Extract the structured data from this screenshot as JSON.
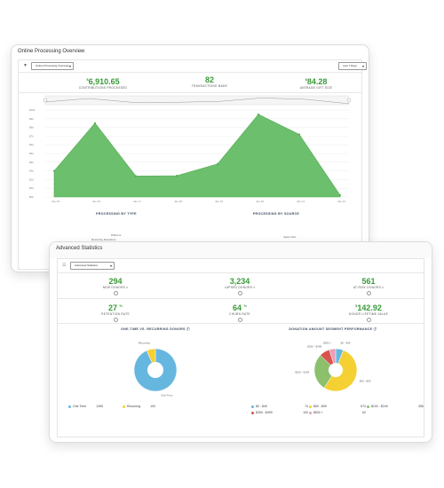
{
  "online": {
    "title": "Online Processing Overview",
    "filter_select": "Online Processing Overview",
    "range_select": "Last 7 Days",
    "stats": [
      {
        "value": "6,910.65",
        "prefix": "$",
        "label": "Contributions Processed"
      },
      {
        "value": "82",
        "prefix": "",
        "label": "Transactions Made"
      },
      {
        "value": "84.28",
        "prefix": "$",
        "label": "Average Gift Size"
      }
    ],
    "chart_data": {
      "type": "area",
      "x": [
        "Jan 15",
        "Jan 16",
        "Jan 17",
        "Jan 18",
        "Jan 19",
        "Jan 20",
        "Jan 21",
        "Jan 22"
      ],
      "values": [
        300,
        850,
        240,
        245,
        380,
        950,
        720,
        20
      ],
      "ylim": [
        0,
        1000
      ],
      "y_ticks": [
        "$0k",
        "$1k",
        "$2k",
        "$3k",
        "$4k",
        "$5k",
        "$6k",
        "$7k",
        "$8k",
        "$9k",
        "$10k"
      ],
      "color": "#6cbf6c",
      "grid": true
    },
    "by_type_title": "Processing by Type",
    "by_source_title": "Processing by Source",
    "by_type_labels": [
      "Different",
      "Recurring Donations"
    ],
    "by_source_labels": [
      "Apply Now"
    ]
  },
  "advanced": {
    "title": "Advanced Statistics",
    "filter_select": "Advanced Statistics",
    "stats_row1": [
      {
        "value": "294",
        "prefix": "",
        "suffix": "",
        "label": "New Donors"
      },
      {
        "value": "3,234",
        "prefix": "",
        "suffix": "",
        "label": "Lapsed Donors"
      },
      {
        "value": "561",
        "prefix": "",
        "suffix": "",
        "label": "At-Risk Donors"
      }
    ],
    "stats_row2": [
      {
        "value": "27",
        "prefix": "",
        "suffix": "%",
        "label": "Retention Rate"
      },
      {
        "value": "64",
        "prefix": "",
        "suffix": "%",
        "label": "Churn Rate"
      },
      {
        "value": "142.92",
        "prefix": "$",
        "suffix": "",
        "label": "Donor Lifetime Value"
      }
    ],
    "donors_chart": {
      "title": "One-Time vs. Recurring Donors",
      "type": "pie",
      "slices": [
        {
          "label": "One-Time",
          "value": 1395,
          "color": "#66b7e0"
        },
        {
          "label": "Recurring",
          "value": 100,
          "color": "#f5d033"
        }
      ],
      "legend": [
        {
          "label": "One Time",
          "count": "1395",
          "color": "#66b7e0"
        },
        {
          "label": "Recurring",
          "count": "100",
          "color": "#f5d033"
        }
      ]
    },
    "segment_chart": {
      "title": "Donation Amount Segment Performance",
      "type": "pie",
      "slices": [
        {
          "label": "$0 - $49",
          "value": 74,
          "color": "#66b7e0"
        },
        {
          "label": "$50 - $99",
          "value": 674,
          "color": "#f5d033"
        },
        {
          "label": "$100 - $249",
          "value": 356,
          "color": "#8cc06c"
        },
        {
          "label": "$250 - $499",
          "value": 100,
          "color": "#d9534f"
        },
        {
          "label": "$500 +",
          "value": 62,
          "color": "#e8a0b8"
        }
      ],
      "legend": [
        {
          "label": "$0 - $49",
          "count": "74",
          "color": "#66b7e0"
        },
        {
          "label": "$50 - $99",
          "count": "674",
          "color": "#f5d033"
        },
        {
          "label": "$100 - $249",
          "count": "356",
          "color": "#8cc06c"
        },
        {
          "label": "$250 - $499",
          "count": "100",
          "color": "#d9534f"
        },
        {
          "label": "$500 +",
          "count": "62",
          "color": "#e8a0b8"
        }
      ]
    }
  }
}
